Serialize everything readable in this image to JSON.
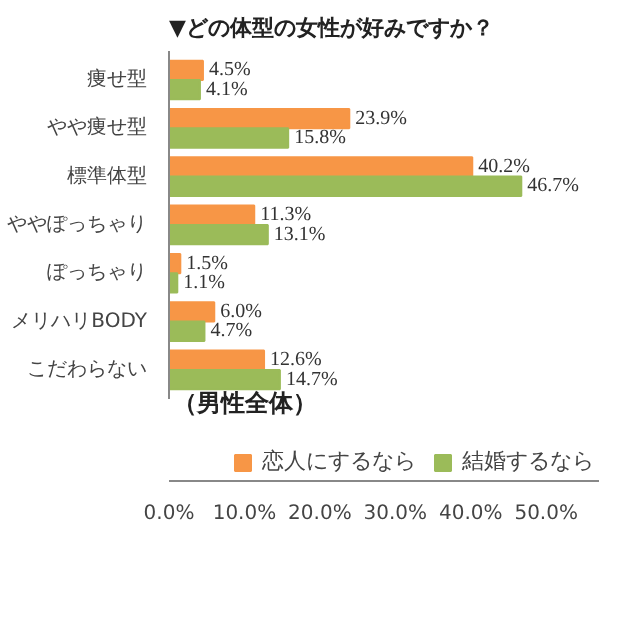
{
  "chart_data": {
    "type": "bar",
    "orientation": "horizontal",
    "title": "▼どの体型の女性が好みですか？",
    "categories": [
      "痩せ型",
      "やや痩せ型",
      "標準体型",
      "ややぽっちゃり",
      "ぽっちゃり",
      "メリハリBODY",
      "こだわらない"
    ],
    "series": [
      {
        "name": "恋人にするなら",
        "color": "#f79646",
        "values": [
          4.5,
          23.9,
          40.2,
          11.3,
          1.5,
          6.0,
          12.6
        ],
        "value_labels": [
          "4.5%",
          "23.9%",
          "40.2%",
          "11.3%",
          "1.5%",
          "6.0%",
          "12.6%"
        ]
      },
      {
        "name": "結婚するなら",
        "color": "#9bbb59",
        "values": [
          4.1,
          15.8,
          46.7,
          13.1,
          1.1,
          4.7,
          14.7
        ],
        "value_labels": [
          "4.1%",
          "15.8%",
          "46.7%",
          "13.1%",
          "1.1%",
          "4.7%",
          "14.7%"
        ]
      }
    ],
    "xlim": [
      0,
      57
    ],
    "xticks": [
      {
        "value": 0,
        "label": "0.0%"
      },
      {
        "value": 10,
        "label": "10.0%"
      },
      {
        "value": 20,
        "label": "20.0%"
      },
      {
        "value": 30,
        "label": "30.0%"
      },
      {
        "value": 40,
        "label": "40.0%"
      },
      {
        "value": 50,
        "label": "50.0%"
      }
    ],
    "grid": false,
    "legend": "bottom right",
    "annotations": [
      "（男性全体）"
    ]
  }
}
